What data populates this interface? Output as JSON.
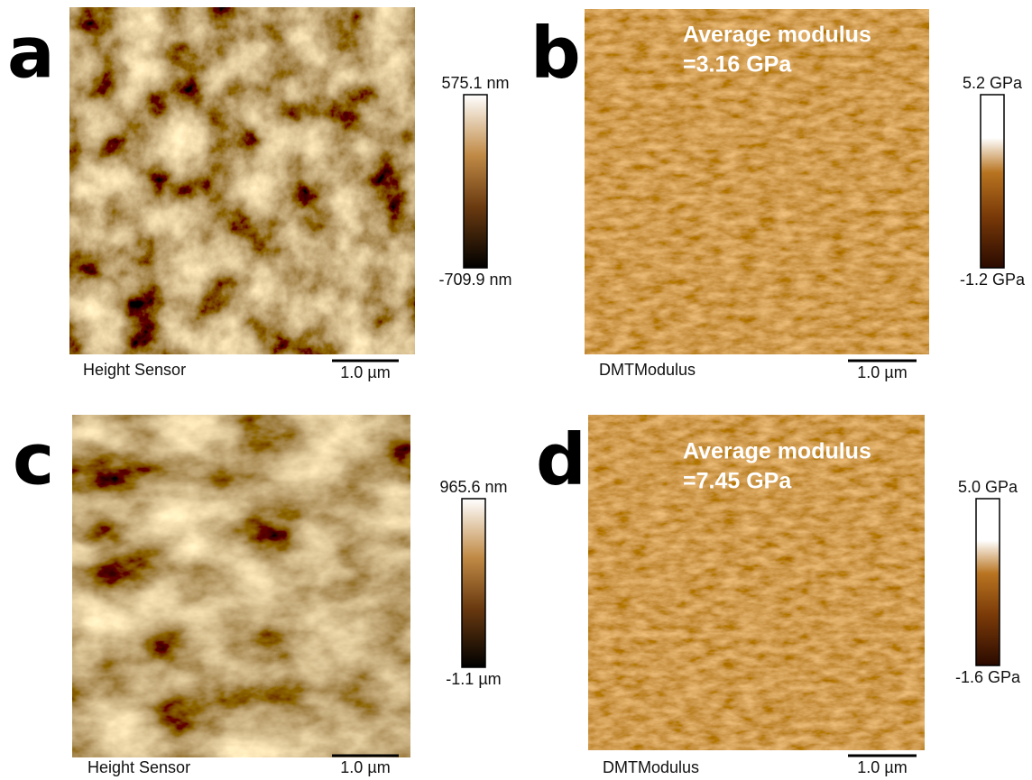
{
  "panels": [
    {
      "label": "a",
      "caption": "Height Sensor",
      "scale_bar": "1.0 µm",
      "colorbar": {
        "max": "575.1 nm",
        "min": "-709.9 nm"
      }
    },
    {
      "label": "b",
      "caption": "DMTModulus",
      "scale_bar": "1.0 µm",
      "colorbar": {
        "max": "5.2 GPa",
        "min": "-1.2 GPa"
      },
      "annotation": [
        "Average modulus",
        "=3.16 GPa"
      ]
    },
    {
      "label": "c",
      "caption": "Height Sensor",
      "scale_bar": "1.0 µm",
      "colorbar": {
        "max": "965.6 nm",
        "min": "-1.1 µm"
      }
    },
    {
      "label": "d",
      "caption": "DMTModulus",
      "scale_bar": "1.0 µm",
      "colorbar": {
        "max": "5.0 GPa",
        "min": "-1.6 GPa"
      },
      "annotation": [
        "Average modulus",
        "=7.45 GPa"
      ]
    }
  ]
}
